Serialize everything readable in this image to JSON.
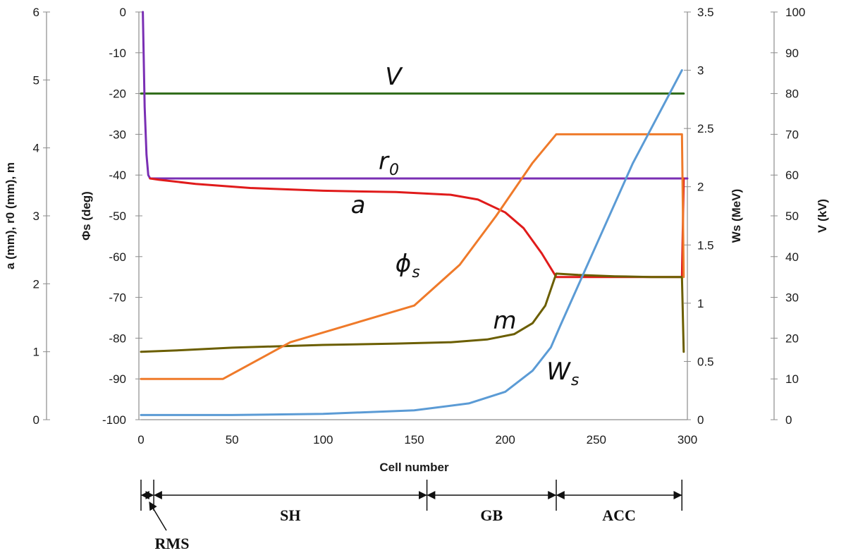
{
  "chart_data": {
    "type": "line",
    "xlabel": "Cell number",
    "xlim": [
      0,
      300
    ],
    "xticks": [
      "0",
      "50",
      "100",
      "150",
      "200",
      "250",
      "300"
    ],
    "axes": [
      {
        "id": "a",
        "label": "a (mm), r0 (mm), m",
        "ylim": [
          0,
          6
        ],
        "ticks": [
          "0",
          "1",
          "2",
          "3",
          "4",
          "5",
          "6"
        ]
      },
      {
        "id": "phi",
        "label": "Φs (deg)",
        "ylim": [
          -100,
          0
        ],
        "ticks": [
          "-100",
          "-90",
          "-80",
          "-70",
          "-60",
          "-50",
          "-40",
          "-30",
          "-20",
          "-10",
          "0"
        ]
      },
      {
        "id": "ws",
        "label": "Ws (MeV)",
        "ylim": [
          0,
          3.5
        ],
        "ticks": [
          "0",
          "0.5",
          "1",
          "1.5",
          "2",
          "2.5",
          "3",
          "3.5"
        ]
      },
      {
        "id": "v",
        "label": "V (kV)",
        "ylim": [
          0,
          100
        ],
        "ticks": [
          "0",
          "10",
          "20",
          "30",
          "40",
          "50",
          "60",
          "70",
          "80",
          "90",
          "100"
        ]
      }
    ],
    "series": [
      {
        "name": "V",
        "axis": "v",
        "color": "#2e6b18",
        "x": [
          0,
          298
        ],
        "y": [
          80,
          80
        ]
      },
      {
        "name": "r0",
        "axis": "a",
        "color": "#7a2fb4",
        "x": [
          1,
          2,
          3,
          4,
          5,
          300
        ],
        "y": [
          6,
          4.6,
          3.9,
          3.6,
          3.55,
          3.55
        ]
      },
      {
        "name": "a",
        "axis": "a",
        "color": "#e01b1b",
        "x": [
          5,
          10,
          30,
          60,
          100,
          140,
          170,
          185,
          200,
          210,
          220,
          228,
          240,
          260,
          290,
          297,
          298
        ],
        "y": [
          3.55,
          3.53,
          3.47,
          3.41,
          3.37,
          3.35,
          3.31,
          3.24,
          3.05,
          2.82,
          2.45,
          2.1,
          2.1,
          2.1,
          2.1,
          2.1,
          3.55
        ]
      },
      {
        "name": "m",
        "axis": "a",
        "color": "#6b5e00",
        "x": [
          0,
          20,
          50,
          100,
          140,
          170,
          190,
          205,
          215,
          222,
          228,
          240,
          260,
          280,
          297,
          298
        ],
        "y": [
          1.0,
          1.02,
          1.06,
          1.1,
          1.12,
          1.14,
          1.18,
          1.26,
          1.42,
          1.68,
          2.15,
          2.13,
          2.11,
          2.1,
          2.1,
          1.0
        ]
      },
      {
        "name": "Φs",
        "axis": "phi",
        "color": "#ef7a2a",
        "x": [
          0,
          45,
          82,
          150,
          175,
          195,
          215,
          228,
          297,
          298
        ],
        "y": [
          -90,
          -90,
          -81,
          -72,
          -62,
          -50,
          -37,
          -30,
          -30,
          -65
        ]
      },
      {
        "name": "Ws",
        "axis": "ws",
        "color": "#5b9bd5",
        "x": [
          0,
          50,
          100,
          150,
          180,
          200,
          215,
          225,
          230,
          250,
          270,
          297
        ],
        "y": [
          0.04,
          0.04,
          0.05,
          0.08,
          0.14,
          0.24,
          0.42,
          0.62,
          0.8,
          1.5,
          2.2,
          3.0
        ]
      }
    ],
    "curve_labels": [
      {
        "series": "V",
        "text": "V"
      },
      {
        "series": "r0",
        "text": "r",
        "sub": "0"
      },
      {
        "series": "a",
        "text": "a"
      },
      {
        "series": "Φs",
        "text": "ϕ",
        "sub": "s"
      },
      {
        "series": "m",
        "text": "m"
      },
      {
        "series": "Ws",
        "text": "W",
        "sub": "s"
      }
    ],
    "sections": [
      {
        "name": "RMS",
        "x0": 0,
        "x1": 7
      },
      {
        "name": "SH",
        "x0": 7,
        "x1": 157
      },
      {
        "name": "GB",
        "x0": 157,
        "x1": 228
      },
      {
        "name": "ACC",
        "x0": 228,
        "x1": 297
      }
    ]
  }
}
